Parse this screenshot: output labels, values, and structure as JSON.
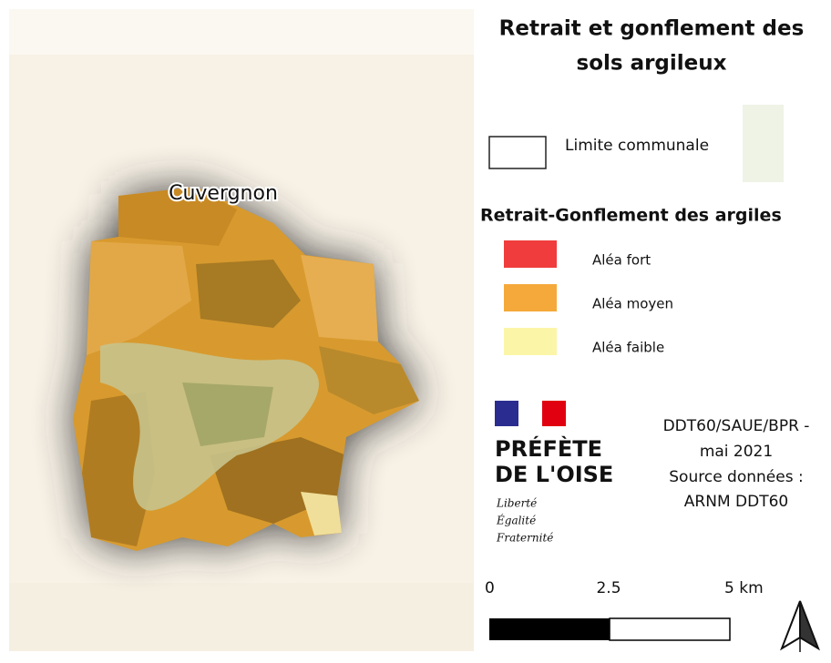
{
  "map": {
    "commune_label": "Cuvergnon"
  },
  "title": {
    "lines": [
      "Retrait et gonflement des",
      "sols argileux"
    ]
  },
  "legend": {
    "boundary": {
      "label": "Limite communale"
    },
    "heading": "Retrait-Gonflement des argiles",
    "items": [
      {
        "label": "Aléa fort",
        "color": "#f03c3c"
      },
      {
        "label": "Aléa moyen",
        "color": "#f5a93a"
      },
      {
        "label": "Aléa faible",
        "color": "#fbf5a8"
      }
    ]
  },
  "logo": {
    "name_lines": [
      "PRÉFÈTE",
      "DE L'OISE"
    ],
    "motto": [
      "Liberté",
      "Égalité",
      "Fraternité"
    ]
  },
  "credits": {
    "lines": [
      "DDT60/SAUE/BPR -",
      "mai 2021",
      "Source données :",
      "ARNM DDT60"
    ]
  },
  "scale": {
    "labels": [
      "0",
      "2.5",
      "5 km"
    ]
  }
}
